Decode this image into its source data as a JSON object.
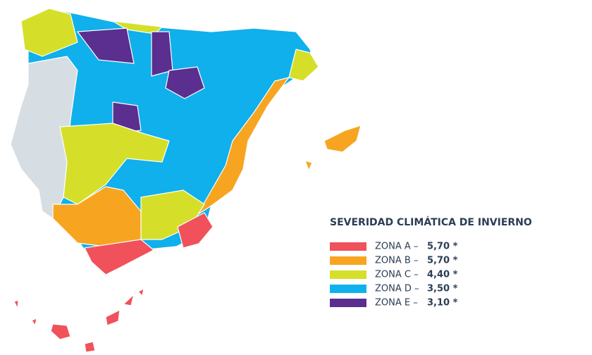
{
  "legend": {
    "title": "SEVERIDAD CLIMÁTICA DE INVIERNO",
    "items": [
      {
        "label": "ZONA A –",
        "value": "5,70 *",
        "color": "#f0515a"
      },
      {
        "label": "ZONA B –",
        "value": "5,70 *",
        "color": "#f7a521"
      },
      {
        "label": "ZONA C –",
        "value": "4,40 *",
        "color": "#d5df2a"
      },
      {
        "label": "ZONA D –",
        "value": "3,50 *",
        "color": "#0fb0ec"
      },
      {
        "label": "ZONA E –",
        "value": "3,10 *",
        "color": "#5a2f8f"
      }
    ]
  }
}
